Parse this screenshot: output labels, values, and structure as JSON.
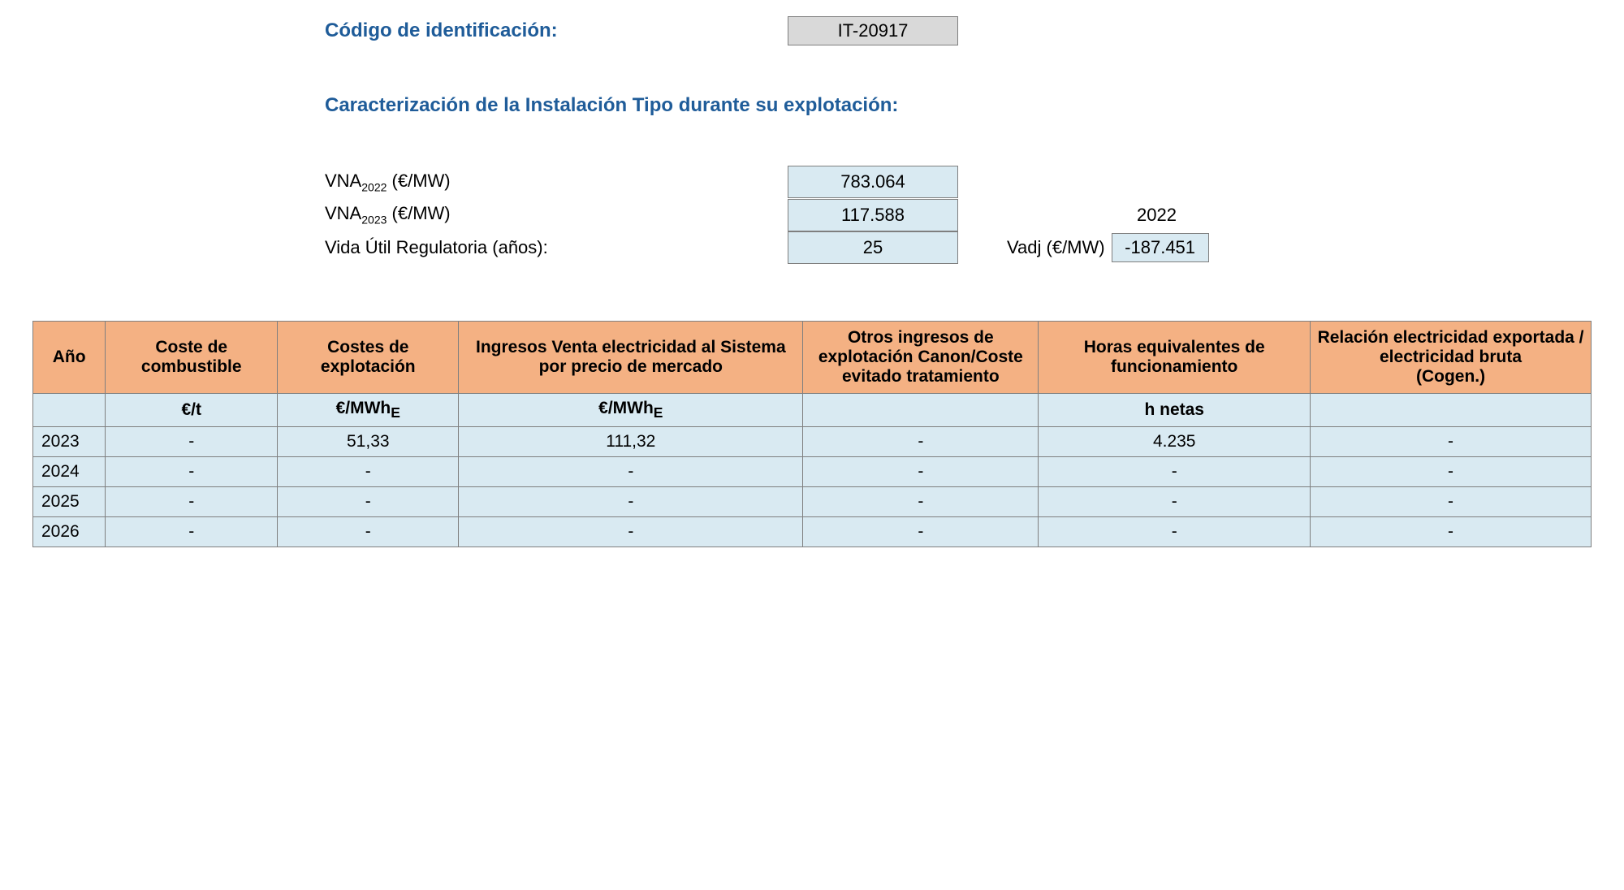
{
  "identification": {
    "label": "Código de identificación:",
    "value": "IT-20917"
  },
  "caracterizacion_heading": "Caracterización de la Instalación Tipo durante su explotación:",
  "params": {
    "vna2022": {
      "label_prefix": "VNA",
      "label_sub": "2022",
      "label_suffix": " (€/MW)",
      "value": "783.064"
    },
    "vna2023": {
      "label_prefix": "VNA",
      "label_sub": "2023",
      "label_suffix": " (€/MW)",
      "value": "117.588"
    },
    "vida_util": {
      "label": "Vida Útil Regulatoria (años):",
      "value": "25"
    },
    "ref_year": "2022",
    "vadj": {
      "label": "Vadj (€/MW)",
      "value": "-187.451"
    }
  },
  "table": {
    "headers": {
      "ano": "Año",
      "combustible": "Coste de combustible",
      "explotacion": "Costes de explotación",
      "ingresos": "Ingresos Venta electricidad al Sistema por precio de mercado",
      "otros": "Otros ingresos de explotación Canon/Coste evitado tratamiento",
      "horas": "Horas equivalentes de funcionamiento",
      "relacion_l1": "Relación electricidad exportada / electricidad bruta",
      "relacion_l2": "(Cogen.)"
    },
    "units": {
      "ano": "",
      "combustible": "€/t",
      "explotacion_prefix": "€/MWh",
      "explotacion_sub": "E",
      "ingresos_prefix": "€/MWh",
      "ingresos_sub": "E",
      "otros": "",
      "horas": "h netas",
      "relacion": ""
    },
    "rows": [
      {
        "ano": "2023",
        "combustible": "-",
        "explotacion": "51,33",
        "ingresos": "111,32",
        "otros": "-",
        "horas": "4.235",
        "relacion": "-"
      },
      {
        "ano": "2024",
        "combustible": "-",
        "explotacion": "-",
        "ingresos": "-",
        "otros": "-",
        "horas": "-",
        "relacion": "-"
      },
      {
        "ano": "2025",
        "combustible": "-",
        "explotacion": "-",
        "ingresos": "-",
        "otros": "-",
        "horas": "-",
        "relacion": "-"
      },
      {
        "ano": "2026",
        "combustible": "-",
        "explotacion": "-",
        "ingresos": "-",
        "otros": "-",
        "horas": "-",
        "relacion": "-"
      }
    ]
  },
  "colors": {
    "heading": "#1f5c99",
    "id_box_bg": "#d9d9d9",
    "value_box_bg": "#d9eaf2",
    "table_header_bg": "#f4b183",
    "table_cell_bg": "#d9eaf2",
    "border": "#7f7f7f"
  }
}
